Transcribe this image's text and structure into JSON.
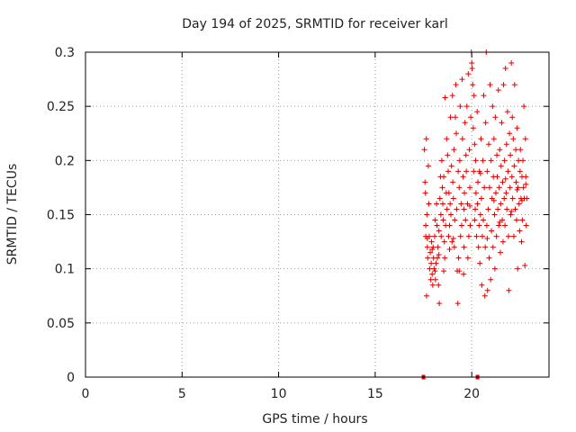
{
  "chart_data": {
    "type": "scatter",
    "title": "Day 194 of 2025, SRMTID for receiver karl",
    "xlabel": "GPS time / hours",
    "ylabel": "SRMTID / TECUs",
    "xlim": [
      0,
      24
    ],
    "ylim": [
      0,
      0.3
    ],
    "xticks": [
      0,
      5,
      10,
      15,
      20
    ],
    "yticks": [
      0,
      0.05,
      0.1,
      0.15,
      0.2,
      0.25,
      0.3
    ],
    "xtick_labels": [
      "0",
      "5",
      "10",
      "15",
      "20"
    ],
    "ytick_labels": [
      "0",
      "0.05",
      "0.1",
      "0.15",
      "0.2",
      "0.25",
      "0.3"
    ],
    "grid": true,
    "marker": "+",
    "color": "#e00000",
    "points": [
      [
        17.55,
        0.21
      ],
      [
        17.58,
        0.18
      ],
      [
        17.6,
        0.17
      ],
      [
        17.62,
        0.14
      ],
      [
        17.62,
        0.13
      ],
      [
        17.65,
        0.22
      ],
      [
        17.66,
        0.075
      ],
      [
        17.68,
        0.15
      ],
      [
        17.7,
        0.12
      ],
      [
        17.72,
        0.11
      ],
      [
        17.75,
        0.195
      ],
      [
        17.78,
        0.16
      ],
      [
        17.8,
        0.13
      ],
      [
        17.82,
        0.1
      ],
      [
        17.85,
        0.115
      ],
      [
        17.88,
        0.09
      ],
      [
        17.9,
        0.105
      ],
      [
        17.92,
        0.125
      ],
      [
        17.95,
        0.095
      ],
      [
        17.98,
        0.085
      ],
      [
        18.0,
        0.12
      ],
      [
        18.02,
        0.11
      ],
      [
        18.05,
        0.1
      ],
      [
        18.08,
        0.13
      ],
      [
        18.1,
        0.145
      ],
      [
        18.12,
        0.09
      ],
      [
        18.15,
        0.105
      ],
      [
        18.18,
        0.16
      ],
      [
        18.2,
        0.14
      ],
      [
        18.22,
        0.11
      ],
      [
        18.25,
        0.12
      ],
      [
        18.28,
        0.085
      ],
      [
        18.3,
        0.135
      ],
      [
        18.32,
        0.068
      ],
      [
        18.35,
        0.165
      ],
      [
        18.38,
        0.185
      ],
      [
        18.4,
        0.15
      ],
      [
        18.42,
        0.13
      ],
      [
        18.45,
        0.2
      ],
      [
        18.48,
        0.175
      ],
      [
        18.5,
        0.16
      ],
      [
        18.52,
        0.145
      ],
      [
        18.55,
        0.185
      ],
      [
        18.58,
        0.125
      ],
      [
        18.6,
        0.11
      ],
      [
        18.62,
        0.258
      ],
      [
        18.65,
        0.14
      ],
      [
        18.68,
        0.17
      ],
      [
        18.7,
        0.22
      ],
      [
        18.72,
        0.155
      ],
      [
        18.75,
        0.205
      ],
      [
        18.78,
        0.19
      ],
      [
        18.8,
        0.13
      ],
      [
        18.82,
        0.17
      ],
      [
        18.85,
        0.14
      ],
      [
        18.88,
        0.16
      ],
      [
        18.9,
        0.24
      ],
      [
        18.92,
        0.15
      ],
      [
        18.95,
        0.195
      ],
      [
        18.98,
        0.125
      ],
      [
        19.0,
        0.26
      ],
      [
        19.02,
        0.18
      ],
      [
        19.05,
        0.165
      ],
      [
        19.08,
        0.21
      ],
      [
        19.1,
        0.12
      ],
      [
        19.12,
        0.145
      ],
      [
        19.15,
        0.24
      ],
      [
        19.18,
        0.27
      ],
      [
        19.2,
        0.225
      ],
      [
        19.22,
        0.155
      ],
      [
        19.25,
        0.098
      ],
      [
        19.28,
        0.068
      ],
      [
        19.3,
        0.19
      ],
      [
        19.32,
        0.11
      ],
      [
        19.35,
        0.175
      ],
      [
        19.38,
        0.2
      ],
      [
        19.4,
        0.25
      ],
      [
        19.42,
        0.13
      ],
      [
        19.45,
        0.16
      ],
      [
        19.48,
        0.14
      ],
      [
        19.5,
        0.275
      ],
      [
        19.52,
        0.22
      ],
      [
        19.55,
        0.185
      ],
      [
        19.58,
        0.095
      ],
      [
        19.6,
        0.12
      ],
      [
        19.62,
        0.17
      ],
      [
        19.65,
        0.235
      ],
      [
        19.68,
        0.145
      ],
      [
        19.7,
        0.205
      ],
      [
        19.72,
        0.19
      ],
      [
        19.75,
        0.25
      ],
      [
        19.78,
        0.16
      ],
      [
        19.8,
        0.11
      ],
      [
        19.82,
        0.28
      ],
      [
        19.85,
        0.13
      ],
      [
        19.88,
        0.21
      ],
      [
        19.9,
        0.175
      ],
      [
        19.92,
        0.14
      ],
      [
        19.95,
        0.24
      ],
      [
        19.98,
        0.3
      ],
      [
        20.0,
        0.29
      ],
      [
        20.02,
        0.285
      ],
      [
        20.05,
        0.27
      ],
      [
        20.08,
        0.23
      ],
      [
        20.1,
        0.19
      ],
      [
        20.12,
        0.26
      ],
      [
        20.15,
        0.215
      ],
      [
        20.18,
        0.155
      ],
      [
        20.2,
        0.2
      ],
      [
        20.22,
        0.17
      ],
      [
        20.25,
        0.13
      ],
      [
        20.28,
        0.245
      ],
      [
        20.3,
        0.16
      ],
      [
        20.32,
        0.18
      ],
      [
        20.35,
        0.12
      ],
      [
        20.38,
        0.14
      ],
      [
        20.4,
        0.19
      ],
      [
        20.42,
        0.105
      ],
      [
        20.45,
        0.15
      ],
      [
        20.48,
        0.22
      ],
      [
        20.5,
        0.165
      ],
      [
        20.52,
        0.085
      ],
      [
        20.55,
        0.13
      ],
      [
        20.58,
        0.2
      ],
      [
        20.6,
        0.145
      ],
      [
        20.62,
        0.26
      ],
      [
        20.65,
        0.175
      ],
      [
        20.68,
        0.075
      ],
      [
        20.7,
        0.12
      ],
      [
        20.72,
        0.235
      ],
      [
        20.75,
        0.3
      ],
      [
        20.78,
        0.14
      ],
      [
        20.8,
        0.19
      ],
      [
        20.82,
        0.08
      ],
      [
        20.85,
        0.155
      ],
      [
        20.88,
        0.215
      ],
      [
        20.9,
        0.11
      ],
      [
        20.92,
        0.175
      ],
      [
        20.95,
        0.27
      ],
      [
        20.98,
        0.09
      ],
      [
        21.0,
        0.2
      ],
      [
        21.02,
        0.135
      ],
      [
        21.05,
        0.165
      ],
      [
        21.08,
        0.25
      ],
      [
        21.1,
        0.12
      ],
      [
        21.12,
        0.185
      ],
      [
        21.15,
        0.22
      ],
      [
        21.18,
        0.15
      ],
      [
        21.2,
        0.1
      ],
      [
        21.22,
        0.24
      ],
      [
        21.25,
        0.17
      ],
      [
        21.28,
        0.13
      ],
      [
        21.3,
        0.205
      ],
      [
        21.32,
        0.185
      ],
      [
        21.35,
        0.155
      ],
      [
        21.38,
        0.265
      ],
      [
        21.4,
        0.14
      ],
      [
        21.42,
        0.175
      ],
      [
        21.45,
        0.21
      ],
      [
        21.48,
        0.115
      ],
      [
        21.5,
        0.16
      ],
      [
        21.52,
        0.195
      ],
      [
        21.55,
        0.235
      ],
      [
        21.58,
        0.145
      ],
      [
        21.6,
        0.18
      ],
      [
        21.62,
        0.125
      ],
      [
        21.65,
        0.27
      ],
      [
        21.68,
        0.165
      ],
      [
        21.7,
        0.2
      ],
      [
        21.72,
        0.14
      ],
      [
        21.75,
        0.285
      ],
      [
        21.78,
        0.17
      ],
      [
        21.8,
        0.215
      ],
      [
        21.82,
        0.155
      ],
      [
        21.85,
        0.245
      ],
      [
        21.88,
        0.19
      ],
      [
        21.9,
        0.13
      ],
      [
        21.92,
        0.08
      ],
      [
        21.95,
        0.225
      ],
      [
        21.98,
        0.175
      ],
      [
        22.0,
        0.205
      ],
      [
        22.02,
        0.15
      ],
      [
        22.05,
        0.29
      ],
      [
        22.08,
        0.185
      ],
      [
        22.1,
        0.24
      ],
      [
        22.12,
        0.165
      ],
      [
        22.15,
        0.22
      ],
      [
        22.18,
        0.13
      ],
      [
        22.2,
        0.195
      ],
      [
        22.22,
        0.27
      ],
      [
        22.25,
        0.155
      ],
      [
        22.28,
        0.21
      ],
      [
        22.3,
        0.18
      ],
      [
        22.32,
        0.145
      ],
      [
        22.35,
        0.23
      ],
      [
        22.38,
        0.1
      ],
      [
        22.4,
        0.175
      ],
      [
        22.42,
        0.2
      ],
      [
        22.45,
        0.16
      ],
      [
        22.48,
        0.135
      ],
      [
        22.5,
        0.19
      ],
      [
        22.52,
        0.21
      ],
      [
        22.55,
        0.165
      ],
      [
        22.58,
        0.125
      ],
      [
        22.6,
        0.185
      ],
      [
        22.62,
        0.145
      ],
      [
        22.65,
        0.2
      ],
      [
        22.68,
        0.175
      ],
      [
        22.7,
        0.25
      ],
      [
        22.72,
        0.165
      ],
      [
        22.75,
        0.103
      ],
      [
        22.78,
        0.22
      ],
      [
        22.8,
        0.185
      ],
      [
        22.82,
        0.14
      ],
      [
        22.85,
        0.165
      ],
      [
        17.7,
        0.128
      ],
      [
        17.95,
        0.118
      ],
      [
        18.1,
        0.098
      ],
      [
        18.3,
        0.113
      ],
      [
        18.55,
        0.098
      ],
      [
        18.85,
        0.118
      ],
      [
        19.05,
        0.128
      ],
      [
        19.35,
        0.098
      ],
      [
        19.6,
        0.155
      ],
      [
        19.9,
        0.158
      ],
      [
        20.15,
        0.145
      ],
      [
        20.45,
        0.188
      ],
      [
        20.8,
        0.128
      ],
      [
        21.15,
        0.163
      ],
      [
        21.45,
        0.143
      ],
      [
        21.75,
        0.183
      ],
      [
        22.05,
        0.153
      ],
      [
        22.35,
        0.173
      ],
      [
        22.6,
        0.163
      ],
      [
        22.8,
        0.178
      ]
    ],
    "markers_at_zero": [
      17.5,
      20.3
    ]
  }
}
